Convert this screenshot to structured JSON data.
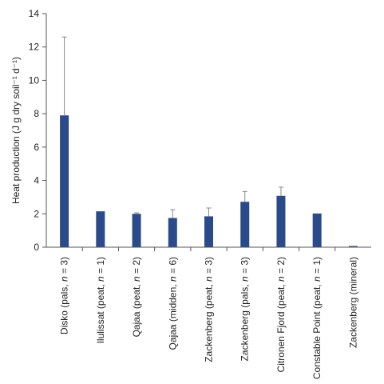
{
  "chart_data": {
    "type": "bar",
    "title": "",
    "xlabel": "",
    "ylabel": "Heat production (J g dry soil⁻¹ d⁻¹)",
    "ylim": [
      0,
      14
    ],
    "yticks": [
      0,
      2,
      4,
      6,
      8,
      10,
      12,
      14
    ],
    "grid": false,
    "categories": [
      "Disko (pals, n = 3)",
      "Ilulissat (peat, n = 1)",
      "Qajaa (peat, n = 2)",
      "Qajaa (midden, n = 6)",
      "Zackenberg (peat, n = 3)",
      "Zackenberg (pals, n = 3)",
      "Citronen Fjord (peat, n = 2)",
      "Constable Point (peat, n = 1)",
      "Zackenberg (mineral)"
    ],
    "values": [
      7.9,
      2.15,
      2.0,
      1.75,
      1.85,
      2.72,
      3.08,
      2.02,
      0.07
    ],
    "errors": [
      4.7,
      0,
      0.06,
      0.5,
      0.5,
      0.62,
      0.52,
      0,
      0
    ],
    "bar_color": "#2a4a8a"
  }
}
